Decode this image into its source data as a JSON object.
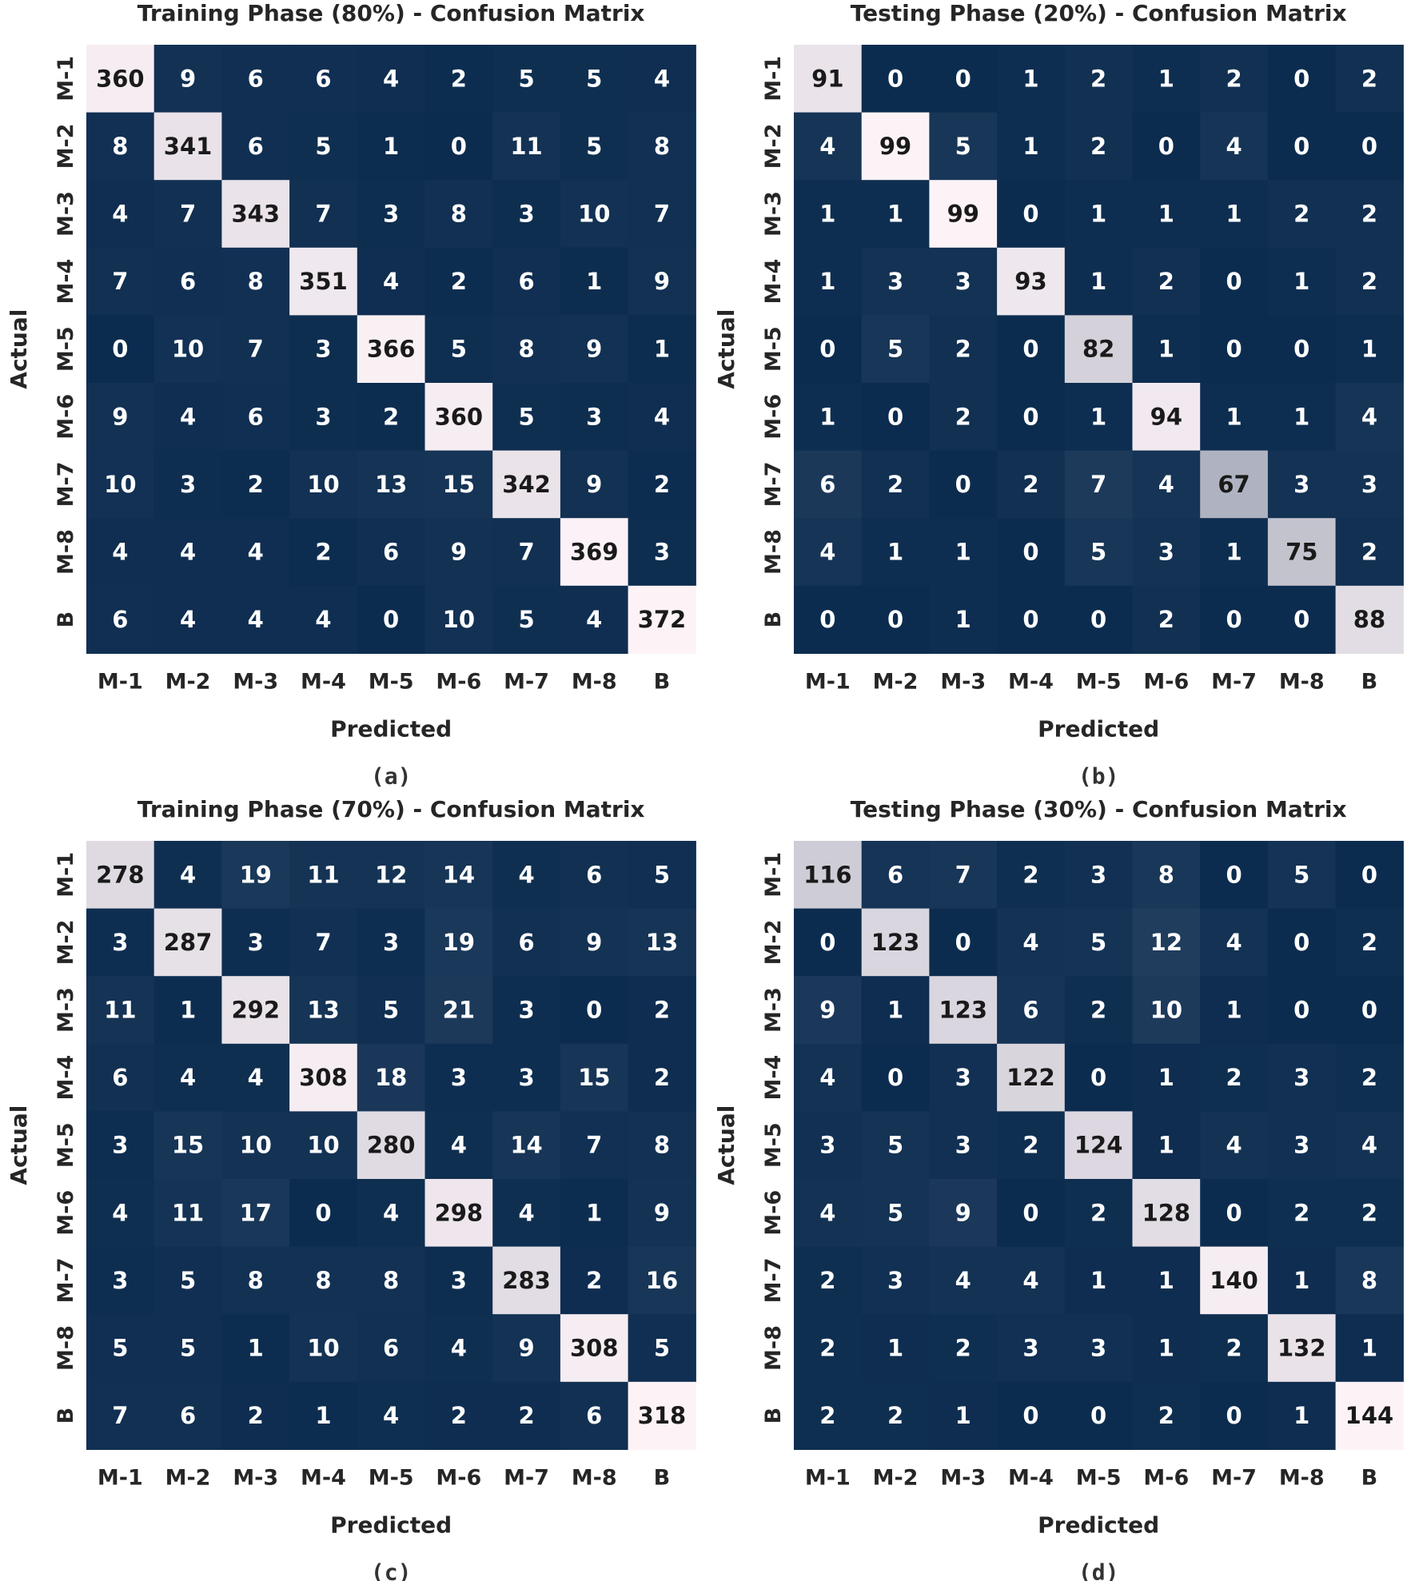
{
  "figure": {
    "labels": [
      "M-1",
      "M-2",
      "M-3",
      "M-4",
      "M-5",
      "M-6",
      "M-7",
      "M-8",
      "B"
    ],
    "colors": {
      "low": "#0c2c4f",
      "high": "#fdf3f7",
      "text_dark": "#1a1a1a",
      "text_light": "#ffffff"
    }
  },
  "chart_data": [
    {
      "type": "heatmap",
      "title": "Training Phase (80%) - Confusion Matrix",
      "xlabel": "Predicted",
      "ylabel": "Actual",
      "caption": "(a)",
      "x_categories": [
        "M-1",
        "M-2",
        "M-3",
        "M-4",
        "M-5",
        "M-6",
        "M-7",
        "M-8",
        "B"
      ],
      "y_categories": [
        "M-1",
        "M-2",
        "M-3",
        "M-4",
        "M-5",
        "M-6",
        "M-7",
        "M-8",
        "B"
      ],
      "values": [
        [
          360,
          9,
          6,
          6,
          4,
          2,
          5,
          5,
          4
        ],
        [
          8,
          341,
          6,
          5,
          1,
          0,
          11,
          5,
          8
        ],
        [
          4,
          7,
          343,
          7,
          3,
          8,
          3,
          10,
          7
        ],
        [
          7,
          6,
          8,
          351,
          4,
          2,
          6,
          1,
          9
        ],
        [
          0,
          10,
          7,
          3,
          366,
          5,
          8,
          9,
          1
        ],
        [
          9,
          4,
          6,
          3,
          2,
          360,
          5,
          3,
          4
        ],
        [
          10,
          3,
          2,
          10,
          13,
          15,
          342,
          9,
          2
        ],
        [
          4,
          4,
          4,
          2,
          6,
          9,
          7,
          369,
          3
        ],
        [
          6,
          4,
          4,
          4,
          0,
          10,
          5,
          4,
          372
        ]
      ]
    },
    {
      "type": "heatmap",
      "title": "Testing Phase (20%) - Confusion Matrix",
      "xlabel": "Predicted",
      "ylabel": "Actual",
      "caption": "(b)",
      "x_categories": [
        "M-1",
        "M-2",
        "M-3",
        "M-4",
        "M-5",
        "M-6",
        "M-7",
        "M-8",
        "B"
      ],
      "y_categories": [
        "M-1",
        "M-2",
        "M-3",
        "M-4",
        "M-5",
        "M-6",
        "M-7",
        "M-8",
        "B"
      ],
      "values": [
        [
          91,
          0,
          0,
          1,
          2,
          1,
          2,
          0,
          2
        ],
        [
          4,
          99,
          5,
          1,
          2,
          0,
          4,
          0,
          0
        ],
        [
          1,
          1,
          99,
          0,
          1,
          1,
          1,
          2,
          2
        ],
        [
          1,
          3,
          3,
          93,
          1,
          2,
          0,
          1,
          2
        ],
        [
          0,
          5,
          2,
          0,
          82,
          1,
          0,
          0,
          1
        ],
        [
          1,
          0,
          2,
          0,
          1,
          94,
          1,
          1,
          4
        ],
        [
          6,
          2,
          0,
          2,
          7,
          4,
          67,
          3,
          3
        ],
        [
          4,
          1,
          1,
          0,
          5,
          3,
          1,
          75,
          2
        ],
        [
          0,
          0,
          1,
          0,
          0,
          2,
          0,
          0,
          88
        ]
      ]
    },
    {
      "type": "heatmap",
      "title": "Training Phase (70%) - Confusion Matrix",
      "xlabel": "Predicted",
      "ylabel": "Actual",
      "caption": "(c)",
      "x_categories": [
        "M-1",
        "M-2",
        "M-3",
        "M-4",
        "M-5",
        "M-6",
        "M-7",
        "M-8",
        "B"
      ],
      "y_categories": [
        "M-1",
        "M-2",
        "M-3",
        "M-4",
        "M-5",
        "M-6",
        "M-7",
        "M-8",
        "B"
      ],
      "values": [
        [
          278,
          4,
          19,
          11,
          12,
          14,
          4,
          6,
          5
        ],
        [
          3,
          287,
          3,
          7,
          3,
          19,
          6,
          9,
          13
        ],
        [
          11,
          1,
          292,
          13,
          5,
          21,
          3,
          0,
          2
        ],
        [
          6,
          4,
          4,
          308,
          18,
          3,
          3,
          15,
          2
        ],
        [
          3,
          15,
          10,
          10,
          280,
          4,
          14,
          7,
          8
        ],
        [
          4,
          11,
          17,
          0,
          4,
          298,
          4,
          1,
          9
        ],
        [
          3,
          5,
          8,
          8,
          8,
          3,
          283,
          2,
          16
        ],
        [
          5,
          5,
          1,
          10,
          6,
          4,
          9,
          308,
          5
        ],
        [
          7,
          6,
          2,
          1,
          4,
          2,
          2,
          6,
          318
        ]
      ]
    },
    {
      "type": "heatmap",
      "title": "Testing Phase (30%) - Confusion Matrix",
      "xlabel": "Predicted",
      "ylabel": "Actual",
      "caption": "(d)",
      "x_categories": [
        "M-1",
        "M-2",
        "M-3",
        "M-4",
        "M-5",
        "M-6",
        "M-7",
        "M-8",
        "B"
      ],
      "y_categories": [
        "M-1",
        "M-2",
        "M-3",
        "M-4",
        "M-5",
        "M-6",
        "M-7",
        "M-8",
        "B"
      ],
      "values": [
        [
          116,
          6,
          7,
          2,
          3,
          8,
          0,
          5,
          0
        ],
        [
          0,
          123,
          0,
          4,
          5,
          12,
          4,
          0,
          2
        ],
        [
          9,
          1,
          123,
          6,
          2,
          10,
          1,
          0,
          0
        ],
        [
          4,
          0,
          3,
          122,
          0,
          1,
          2,
          3,
          2
        ],
        [
          3,
          5,
          3,
          2,
          124,
          1,
          4,
          3,
          4
        ],
        [
          4,
          5,
          9,
          0,
          2,
          128,
          0,
          2,
          2
        ],
        [
          2,
          3,
          4,
          4,
          1,
          1,
          140,
          1,
          8
        ],
        [
          2,
          1,
          2,
          3,
          3,
          1,
          2,
          132,
          1
        ],
        [
          2,
          2,
          1,
          0,
          0,
          2,
          0,
          1,
          144
        ]
      ]
    }
  ]
}
